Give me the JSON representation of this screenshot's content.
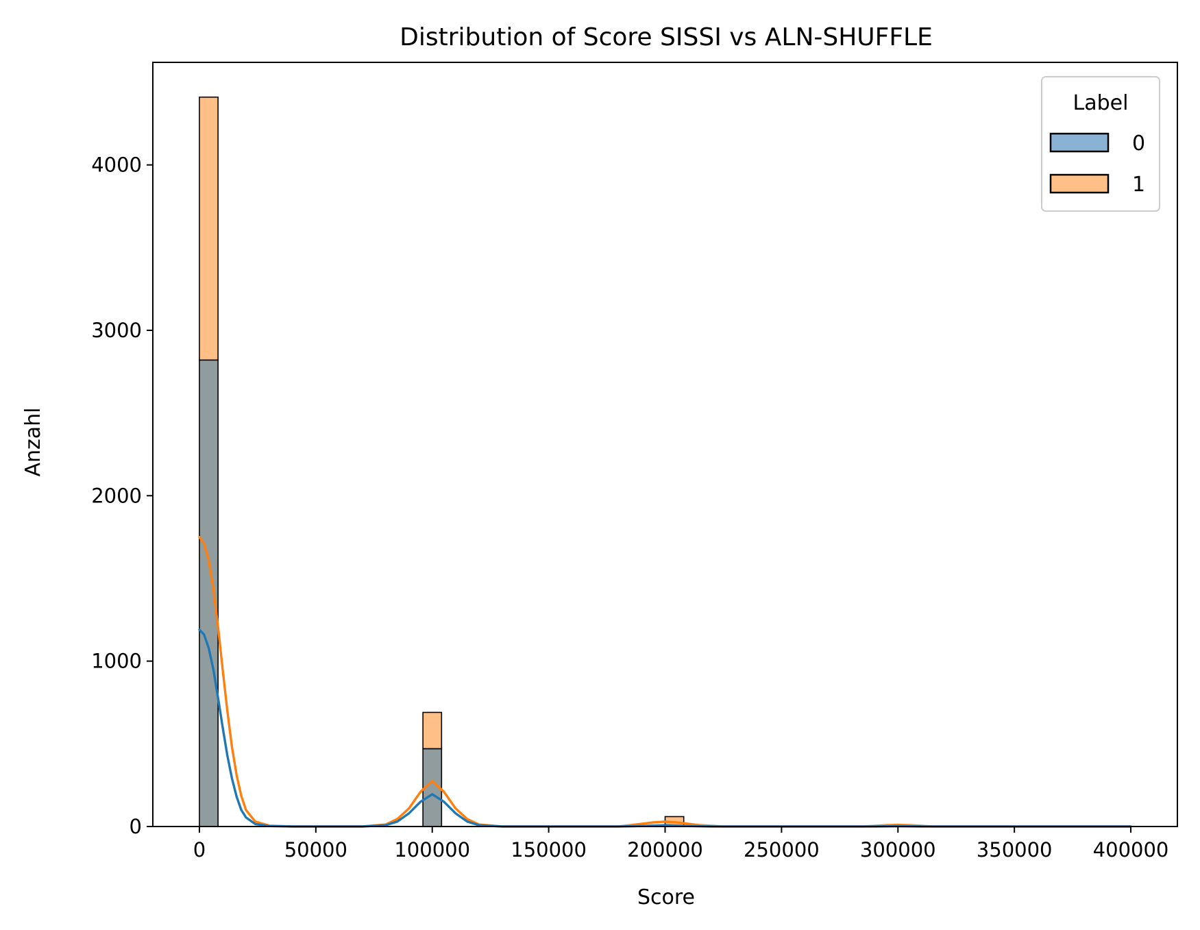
{
  "chart_data": {
    "type": "histogram",
    "title": "Distribution of Score SISSI vs ALN-SHUFFLE",
    "xlabel": "Score",
    "ylabel": "Anzahl",
    "xlim": [
      -20000,
      420000
    ],
    "ylim": [
      0,
      4620
    ],
    "xticks": [
      0,
      50000,
      100000,
      150000,
      200000,
      250000,
      300000,
      350000,
      400000
    ],
    "xtick_labels": [
      "0",
      "50000",
      "100000",
      "150000",
      "200000",
      "250000",
      "300000",
      "350000",
      "400000"
    ],
    "yticks": [
      0,
      1000,
      2000,
      3000,
      4000
    ],
    "ytick_labels": [
      "0",
      "1000",
      "2000",
      "3000",
      "4000"
    ],
    "bin_width": 8000,
    "stacked": true,
    "legend": {
      "title": "Label",
      "position": "top-right",
      "entries": [
        "0",
        "1"
      ]
    },
    "series": [
      {
        "name": "0",
        "color": "#1f77b4",
        "fill": "#8ab2d4",
        "bins": [
          {
            "start": 0,
            "count": 2820
          },
          {
            "start": 96000,
            "count": 470
          },
          {
            "start": 200000,
            "count": 5
          },
          {
            "start": 296000,
            "count": 2
          }
        ],
        "kde": [
          [
            0,
            1190
          ],
          [
            2000,
            1160
          ],
          [
            4000,
            1080
          ],
          [
            6000,
            950
          ],
          [
            8000,
            780
          ],
          [
            10000,
            600
          ],
          [
            12000,
            430
          ],
          [
            14000,
            290
          ],
          [
            16000,
            180
          ],
          [
            18000,
            100
          ],
          [
            20000,
            55
          ],
          [
            24000,
            15
          ],
          [
            30000,
            3
          ],
          [
            40000,
            0
          ],
          [
            70000,
            0
          ],
          [
            80000,
            8
          ],
          [
            85000,
            30
          ],
          [
            90000,
            80
          ],
          [
            95000,
            150
          ],
          [
            100000,
            195
          ],
          [
            105000,
            150
          ],
          [
            110000,
            80
          ],
          [
            115000,
            30
          ],
          [
            120000,
            8
          ],
          [
            130000,
            0
          ],
          [
            180000,
            0
          ],
          [
            190000,
            3
          ],
          [
            200000,
            8
          ],
          [
            210000,
            3
          ],
          [
            220000,
            0
          ],
          [
            290000,
            0
          ],
          [
            300000,
            2
          ],
          [
            310000,
            0
          ],
          [
            400000,
            0
          ]
        ]
      },
      {
        "name": "1",
        "color": "#ff7f0e",
        "fill": "#ffbf86",
        "bins": [
          {
            "start": 0,
            "count": 1590
          },
          {
            "start": 96000,
            "count": 220
          },
          {
            "start": 200000,
            "count": 55
          },
          {
            "start": 296000,
            "count": 8
          }
        ],
        "kde": [
          [
            0,
            1750
          ],
          [
            2000,
            1710
          ],
          [
            4000,
            1610
          ],
          [
            6000,
            1440
          ],
          [
            8000,
            1210
          ],
          [
            10000,
            950
          ],
          [
            12000,
            700
          ],
          [
            14000,
            480
          ],
          [
            16000,
            310
          ],
          [
            18000,
            185
          ],
          [
            20000,
            100
          ],
          [
            24000,
            30
          ],
          [
            30000,
            5
          ],
          [
            40000,
            0
          ],
          [
            70000,
            0
          ],
          [
            80000,
            12
          ],
          [
            85000,
            45
          ],
          [
            90000,
            110
          ],
          [
            95000,
            210
          ],
          [
            100000,
            275
          ],
          [
            105000,
            210
          ],
          [
            110000,
            110
          ],
          [
            115000,
            45
          ],
          [
            120000,
            12
          ],
          [
            130000,
            0
          ],
          [
            180000,
            0
          ],
          [
            185000,
            8
          ],
          [
            195000,
            25
          ],
          [
            200000,
            30
          ],
          [
            205000,
            25
          ],
          [
            215000,
            8
          ],
          [
            225000,
            0
          ],
          [
            285000,
            0
          ],
          [
            295000,
            8
          ],
          [
            300000,
            10
          ],
          [
            305000,
            8
          ],
          [
            315000,
            0
          ],
          [
            400000,
            0
          ]
        ]
      }
    ]
  }
}
